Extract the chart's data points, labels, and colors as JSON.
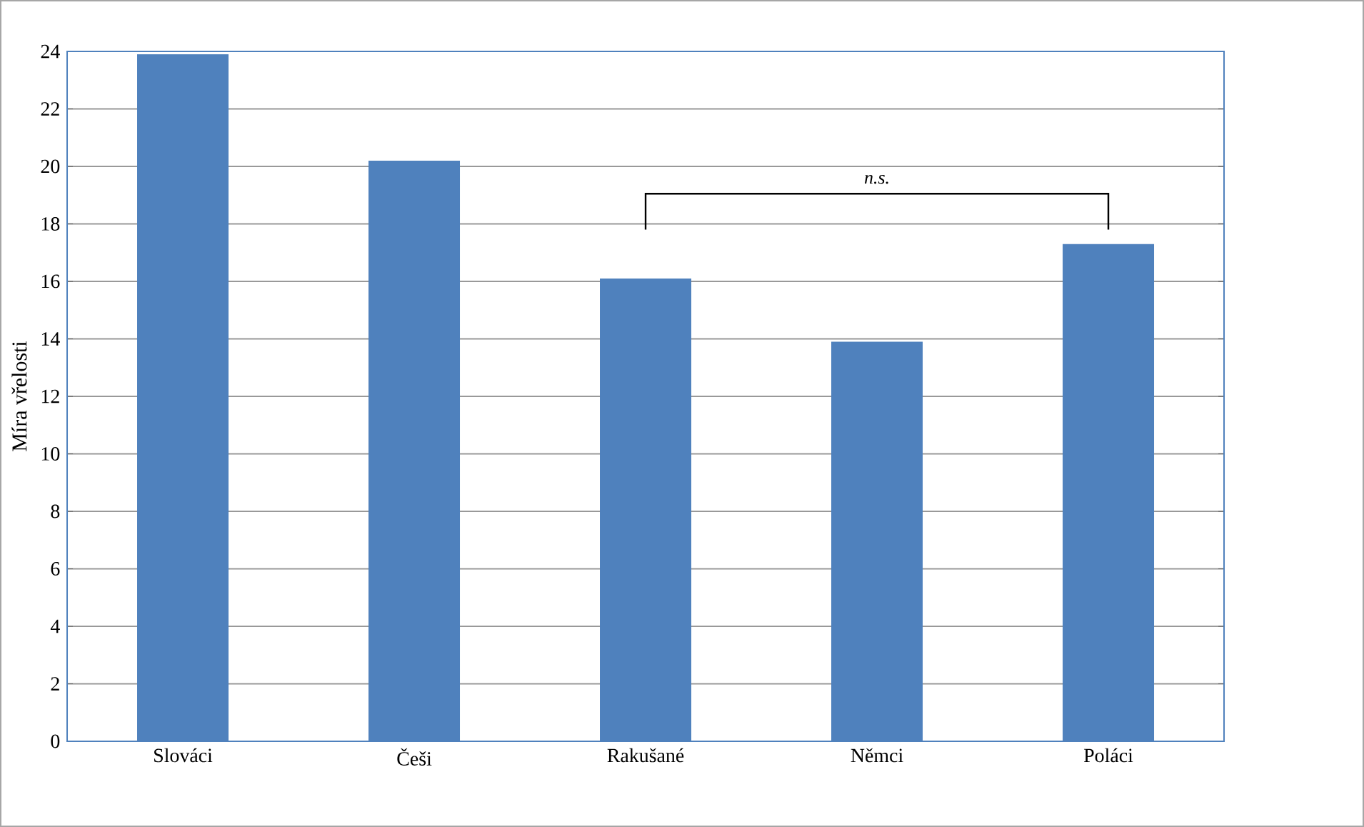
{
  "chart_data": {
    "type": "bar",
    "ylabel": "Míra vřelosti",
    "categories": [
      "Slováci",
      "Češi",
      "Rakušané",
      "Němci",
      "Poláci"
    ],
    "values": [
      23.9,
      20.2,
      16.1,
      13.9,
      17.3
    ],
    "color": "#4f81bd",
    "ylim": [
      0,
      24
    ],
    "yticks": [
      0,
      2,
      4,
      6,
      8,
      10,
      12,
      14,
      16,
      18,
      20,
      22,
      24
    ],
    "grid": "y",
    "annotations": [
      "n.s."
    ]
  }
}
